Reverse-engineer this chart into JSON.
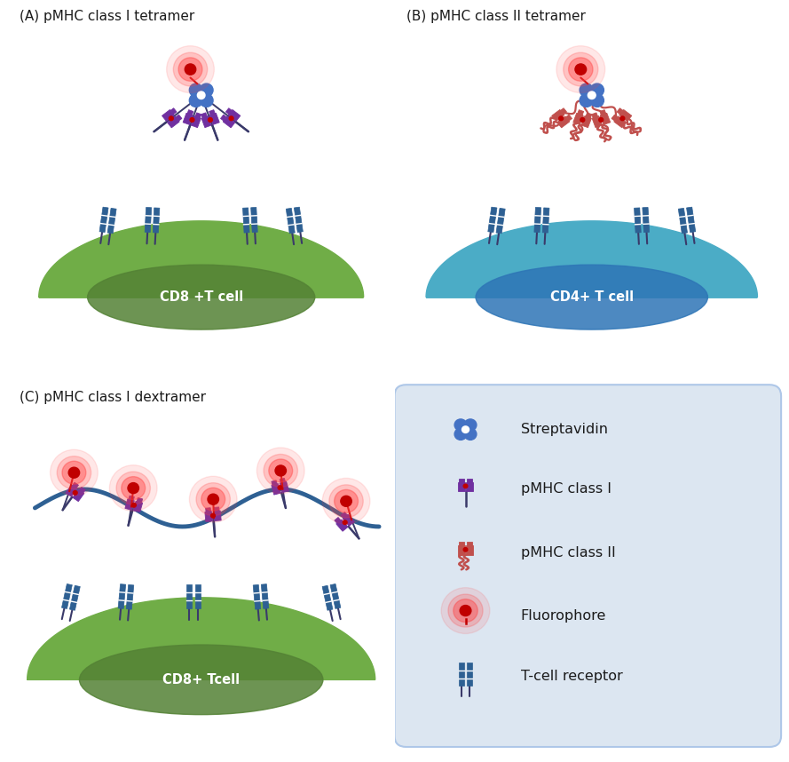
{
  "title_A": "(A) pMHC class I tetramer",
  "title_B": "(B) pMHC class II tetramer",
  "title_C": "(C) pMHC class I dextramer",
  "label_A": "CD8 +T cell",
  "label_B": "CD4+ T cell",
  "label_C": "CD8+ Tcell",
  "legend_items": [
    "Streptavidin",
    "pMHC class I",
    "pMHC class II",
    "Fluorophore",
    "T-cell receptor"
  ],
  "color_streptavidin": "#4472c4",
  "color_pmhc1": "#7030a0",
  "color_pmhc2": "#c0504d",
  "color_tcr": "#2e6093",
  "color_cell_A": "#70ad47",
  "color_cell_A2": "#548235",
  "color_cell_B": "#4bacc6",
  "color_cell_B2": "#2e75b6",
  "color_fluorophore_red": "#c00000",
  "color_fluorophore_glow": "#ff4040",
  "color_stem": "#3a3a6a",
  "color_wire": "#c0504d",
  "legend_bg": "#dce6f1",
  "bg_color": "#ffffff"
}
